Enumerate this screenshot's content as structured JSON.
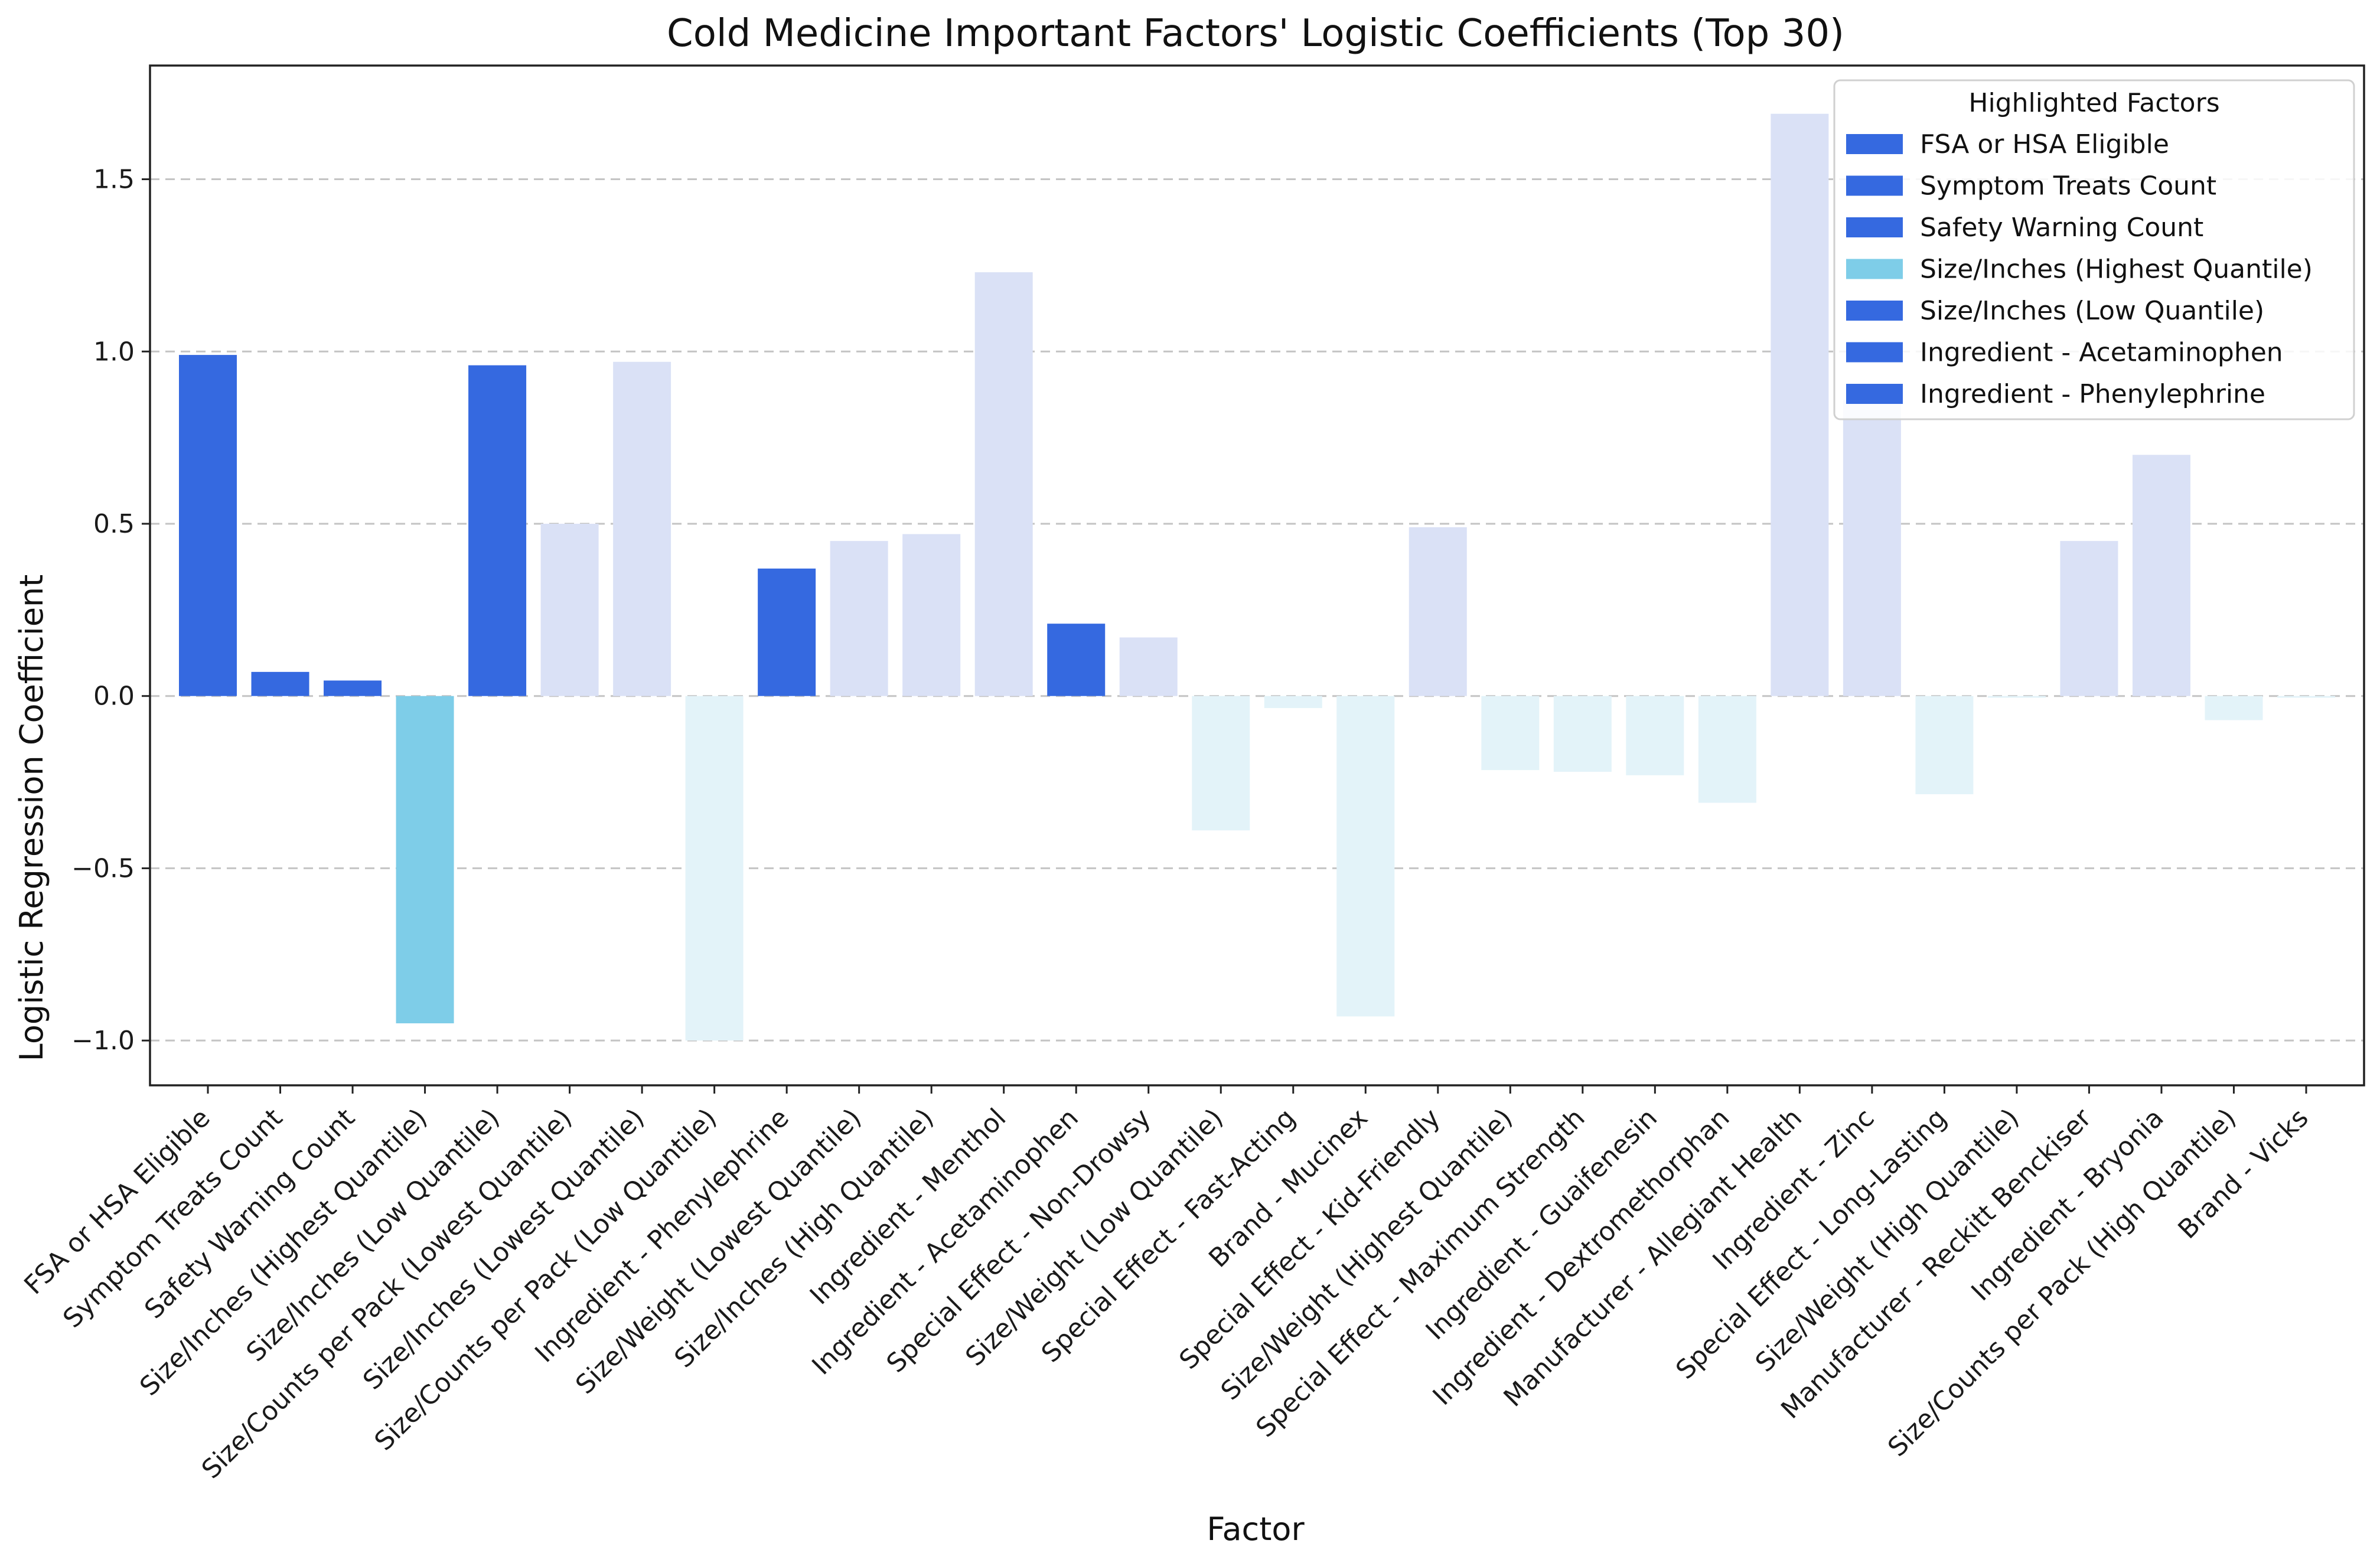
{
  "chart_data": {
    "type": "bar",
    "title": "Cold Medicine Important Factors' Logistic Coefficients (Top 30)",
    "xlabel": "Factor",
    "ylabel": "Logistic Regression Coefficient",
    "ylim": [
      -1.13,
      1.83
    ],
    "yticks": [
      -1.0,
      -0.5,
      0.0,
      0.5,
      1.0,
      1.5
    ],
    "ytick_labels": [
      "−1.0",
      "−0.5",
      "0.0",
      "0.5",
      "1.0",
      "1.5"
    ],
    "grid": "horizontal dashed",
    "legend_position": "top-right",
    "colors": {
      "highlight_positive": "#3569e0",
      "highlight_negative": "#7ecde8",
      "other_positive": "#dae1f6",
      "other_negative": "#e3f3f9",
      "gridline": "#c4c4c4",
      "axis": "#222222"
    },
    "categories": [
      "FSA or HSA Eligible",
      "Symptom Treats Count",
      "Safety Warning Count",
      "Size/Inches (Highest Quantile)",
      "Size/Inches (Low Quantile)",
      "Size/Counts per Pack (Lowest Quantile)",
      "Size/Inches (Lowest Quantile)",
      "Size/Counts per Pack (Low Quantile)",
      "Ingredient - Phenylephrine",
      "Size/Weight (Lowest Quantile)",
      "Size/Inches (High Quantile)",
      "Ingredient - Menthol",
      "Ingredient - Acetaminophen",
      "Special Effect - Non-Drowsy",
      "Size/Weight (Low Quantile)",
      "Special Effect - Fast-Acting",
      "Brand - Mucinex",
      "Special Effect - Kid-Friendly",
      "Size/Weight (Highest Quantile)",
      "Special Effect - Maximum Strength",
      "Ingredient - Guaifenesin",
      "Ingredient - Dextromethorphan",
      "Manufacturer - Allegiant Health",
      "Ingredient - Zinc",
      "Special Effect - Long-Lasting",
      "Size/Weight (High Quantile)",
      "Manufacturer - Reckitt Benckiser",
      "Ingredient - Bryonia",
      "Size/Counts per Pack (High Quantile)",
      "Brand - Vicks"
    ],
    "values": [
      0.99,
      0.07,
      0.045,
      -0.95,
      0.96,
      0.5,
      0.97,
      -1.0,
      0.37,
      0.45,
      0.47,
      1.23,
      0.21,
      0.17,
      -0.39,
      -0.035,
      -0.93,
      0.49,
      -0.215,
      -0.22,
      -0.23,
      -0.31,
      1.69,
      0.86,
      -0.285,
      -0.005,
      0.45,
      0.7,
      -0.07,
      -0.005
    ],
    "highlighted": [
      true,
      true,
      true,
      true,
      true,
      false,
      false,
      false,
      true,
      false,
      false,
      false,
      true,
      false,
      false,
      false,
      false,
      false,
      false,
      false,
      false,
      false,
      false,
      false,
      false,
      false,
      false,
      false,
      false,
      false
    ],
    "legend": {
      "title": "Highlighted Factors",
      "entries": [
        {
          "label": "FSA or HSA Eligible",
          "color": "#3569e0"
        },
        {
          "label": "Symptom Treats Count",
          "color": "#3569e0"
        },
        {
          "label": "Safety Warning Count",
          "color": "#3569e0"
        },
        {
          "label": "Size/Inches (Highest Quantile)",
          "color": "#7ecde8"
        },
        {
          "label": "Size/Inches (Low Quantile)",
          "color": "#3569e0"
        },
        {
          "label": "Ingredient - Acetaminophen",
          "color": "#3569e0"
        },
        {
          "label": "Ingredient - Phenylephrine",
          "color": "#3569e0"
        }
      ]
    }
  }
}
